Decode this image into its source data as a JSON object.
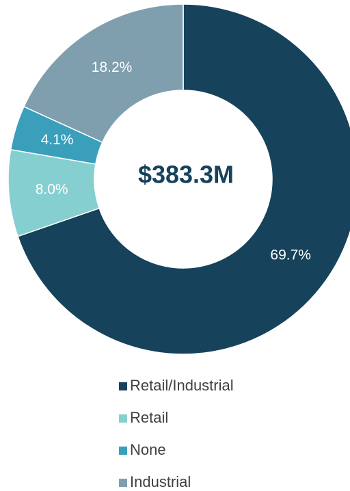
{
  "chart_data": {
    "type": "donut",
    "center_label": "$383.3M",
    "categories": [
      "Retail/Industrial",
      "Retail",
      "None",
      "Industrial"
    ],
    "values": [
      69.7,
      8.0,
      4.1,
      18.2
    ],
    "value_labels": [
      "69.7%",
      "8.0%",
      "4.1%",
      "18.2%"
    ],
    "colors": [
      "#16425b",
      "#86cfd1",
      "#3a9fba",
      "#7f9faf"
    ],
    "legend": "bottom"
  }
}
